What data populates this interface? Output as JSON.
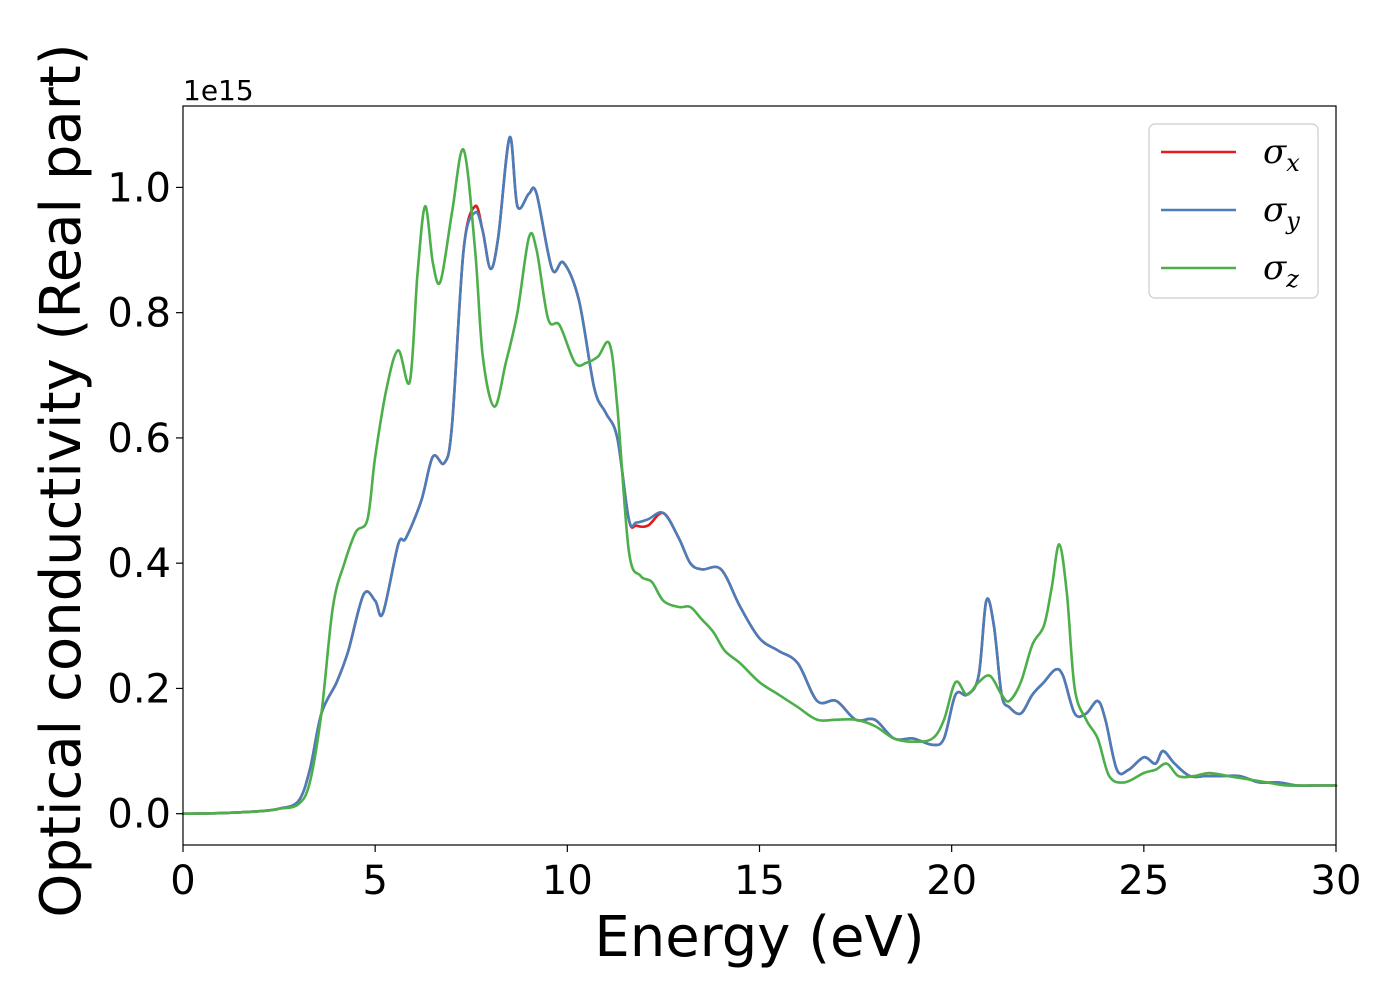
{
  "chart_data": {
    "type": "line",
    "xlabel": "Energy (eV)",
    "ylabel": "Optical conductivity (Real part)",
    "y_offset_text": "1e15",
    "xlim": [
      0,
      30
    ],
    "ylim": [
      -0.05,
      1.13
    ],
    "x_ticks": [
      0,
      5,
      10,
      15,
      20,
      25,
      30
    ],
    "x_tick_labels": [
      "0",
      "5",
      "10",
      "15",
      "20",
      "25",
      "30"
    ],
    "y_ticks": [
      0.0,
      0.2,
      0.4,
      0.6,
      0.8,
      1.0
    ],
    "y_tick_labels": [
      "0.0",
      "0.2",
      "0.4",
      "0.6",
      "0.8",
      "1.0"
    ],
    "grid": false,
    "legend_position": "top-right",
    "series": [
      {
        "name": "σx",
        "symbol": "σ",
        "subscript": "x",
        "color": "#e41a1c",
        "x": [
          0,
          1,
          2,
          2.5,
          3.0,
          3.3,
          3.6,
          4.0,
          4.3,
          4.7,
          5.0,
          5.2,
          5.6,
          5.8,
          6.2,
          6.5,
          6.8,
          7.0,
          7.3,
          7.6,
          7.8,
          8.0,
          8.2,
          8.5,
          8.7,
          9.0,
          9.2,
          9.6,
          9.9,
          10.3,
          10.7,
          11.0,
          11.3,
          11.6,
          11.8,
          12.1,
          12.5,
          12.9,
          13.2,
          13.5,
          14.0,
          14.5,
          15.0,
          15.5,
          16.0,
          16.5,
          17.0,
          17.5,
          18.0,
          18.5,
          19.0,
          19.5,
          19.8,
          20.1,
          20.4,
          20.7,
          20.9,
          21.1,
          21.3,
          21.5,
          21.8,
          22.1,
          22.4,
          22.7,
          22.9,
          23.2,
          23.5,
          23.8,
          24.0,
          24.3,
          24.6,
          25.0,
          25.3,
          25.5,
          25.8,
          26.2,
          26.6,
          27.0,
          27.5,
          28.0,
          28.5,
          29.0,
          29.5,
          30.0
        ],
        "y": [
          0.0,
          0.001,
          0.004,
          0.008,
          0.02,
          0.07,
          0.16,
          0.21,
          0.26,
          0.35,
          0.34,
          0.32,
          0.43,
          0.44,
          0.5,
          0.57,
          0.56,
          0.62,
          0.9,
          0.97,
          0.93,
          0.87,
          0.92,
          1.08,
          0.97,
          0.99,
          0.99,
          0.87,
          0.88,
          0.82,
          0.68,
          0.64,
          0.6,
          0.47,
          0.46,
          0.46,
          0.48,
          0.44,
          0.4,
          0.39,
          0.39,
          0.33,
          0.28,
          0.26,
          0.24,
          0.18,
          0.18,
          0.15,
          0.15,
          0.12,
          0.12,
          0.11,
          0.12,
          0.19,
          0.19,
          0.22,
          0.34,
          0.3,
          0.19,
          0.17,
          0.16,
          0.19,
          0.21,
          0.23,
          0.22,
          0.16,
          0.16,
          0.18,
          0.15,
          0.07,
          0.07,
          0.09,
          0.08,
          0.1,
          0.08,
          0.06,
          0.06,
          0.06,
          0.06,
          0.05,
          0.05,
          0.045,
          0.045,
          0.045
        ]
      },
      {
        "name": "σy",
        "symbol": "σ",
        "subscript": "y",
        "color": "#4a7ebb",
        "x": [
          0,
          1,
          2,
          2.5,
          3.0,
          3.3,
          3.6,
          4.0,
          4.3,
          4.7,
          5.0,
          5.2,
          5.6,
          5.8,
          6.2,
          6.5,
          6.8,
          7.0,
          7.3,
          7.6,
          7.8,
          8.0,
          8.2,
          8.5,
          8.7,
          9.0,
          9.2,
          9.6,
          9.9,
          10.3,
          10.7,
          11.0,
          11.3,
          11.6,
          11.8,
          12.1,
          12.5,
          12.9,
          13.2,
          13.5,
          14.0,
          14.5,
          15.0,
          15.5,
          16.0,
          16.5,
          17.0,
          17.5,
          18.0,
          18.5,
          19.0,
          19.5,
          19.8,
          20.1,
          20.4,
          20.7,
          20.9,
          21.1,
          21.3,
          21.5,
          21.8,
          22.1,
          22.4,
          22.7,
          22.9,
          23.2,
          23.5,
          23.8,
          24.0,
          24.3,
          24.6,
          25.0,
          25.3,
          25.5,
          25.8,
          26.2,
          26.6,
          27.0,
          27.5,
          28.0,
          28.5,
          29.0,
          29.5,
          30.0
        ],
        "y": [
          0.0,
          0.001,
          0.004,
          0.008,
          0.02,
          0.07,
          0.16,
          0.21,
          0.26,
          0.35,
          0.34,
          0.32,
          0.43,
          0.44,
          0.5,
          0.57,
          0.56,
          0.62,
          0.9,
          0.96,
          0.93,
          0.87,
          0.92,
          1.08,
          0.97,
          0.99,
          0.99,
          0.87,
          0.88,
          0.82,
          0.68,
          0.64,
          0.6,
          0.47,
          0.465,
          0.47,
          0.48,
          0.44,
          0.4,
          0.39,
          0.39,
          0.33,
          0.28,
          0.26,
          0.24,
          0.18,
          0.18,
          0.15,
          0.15,
          0.12,
          0.12,
          0.11,
          0.12,
          0.19,
          0.19,
          0.22,
          0.34,
          0.3,
          0.19,
          0.17,
          0.16,
          0.19,
          0.21,
          0.23,
          0.22,
          0.16,
          0.16,
          0.18,
          0.15,
          0.07,
          0.07,
          0.09,
          0.08,
          0.1,
          0.08,
          0.06,
          0.06,
          0.06,
          0.06,
          0.05,
          0.05,
          0.045,
          0.045,
          0.045
        ]
      },
      {
        "name": "σz",
        "symbol": "σ",
        "subscript": "z",
        "color": "#4daf4a",
        "x": [
          0,
          1,
          2,
          2.5,
          3.0,
          3.3,
          3.6,
          3.9,
          4.2,
          4.5,
          4.8,
          5.0,
          5.3,
          5.6,
          5.9,
          6.1,
          6.3,
          6.5,
          6.7,
          7.0,
          7.3,
          7.6,
          7.8,
          8.1,
          8.4,
          8.7,
          9.0,
          9.2,
          9.5,
          9.8,
          10.2,
          10.5,
          10.8,
          11.1,
          11.3,
          11.6,
          11.9,
          12.2,
          12.5,
          12.9,
          13.2,
          13.5,
          13.8,
          14.1,
          14.5,
          15.0,
          15.5,
          16.0,
          16.5,
          17.0,
          17.5,
          18.0,
          18.5,
          19.0,
          19.5,
          19.8,
          20.1,
          20.4,
          20.7,
          21.0,
          21.3,
          21.5,
          21.8,
          22.1,
          22.4,
          22.6,
          22.8,
          23.0,
          23.2,
          23.5,
          23.8,
          24.1,
          24.5,
          25.0,
          25.3,
          25.6,
          25.9,
          26.3,
          26.7,
          27.2,
          27.7,
          28.2,
          28.7,
          29.2,
          29.7,
          30.0
        ],
        "y": [
          0.0,
          0.001,
          0.004,
          0.008,
          0.015,
          0.05,
          0.16,
          0.33,
          0.4,
          0.45,
          0.47,
          0.57,
          0.68,
          0.74,
          0.69,
          0.86,
          0.97,
          0.88,
          0.85,
          0.96,
          1.06,
          0.9,
          0.73,
          0.65,
          0.72,
          0.8,
          0.92,
          0.9,
          0.79,
          0.78,
          0.72,
          0.72,
          0.73,
          0.75,
          0.65,
          0.42,
          0.38,
          0.37,
          0.34,
          0.33,
          0.33,
          0.31,
          0.29,
          0.26,
          0.24,
          0.21,
          0.19,
          0.17,
          0.15,
          0.15,
          0.15,
          0.14,
          0.12,
          0.115,
          0.12,
          0.15,
          0.21,
          0.19,
          0.21,
          0.22,
          0.19,
          0.18,
          0.21,
          0.27,
          0.3,
          0.36,
          0.43,
          0.35,
          0.2,
          0.15,
          0.12,
          0.06,
          0.05,
          0.065,
          0.07,
          0.08,
          0.06,
          0.06,
          0.065,
          0.06,
          0.055,
          0.05,
          0.045,
          0.045,
          0.045,
          0.045
        ]
      }
    ]
  }
}
